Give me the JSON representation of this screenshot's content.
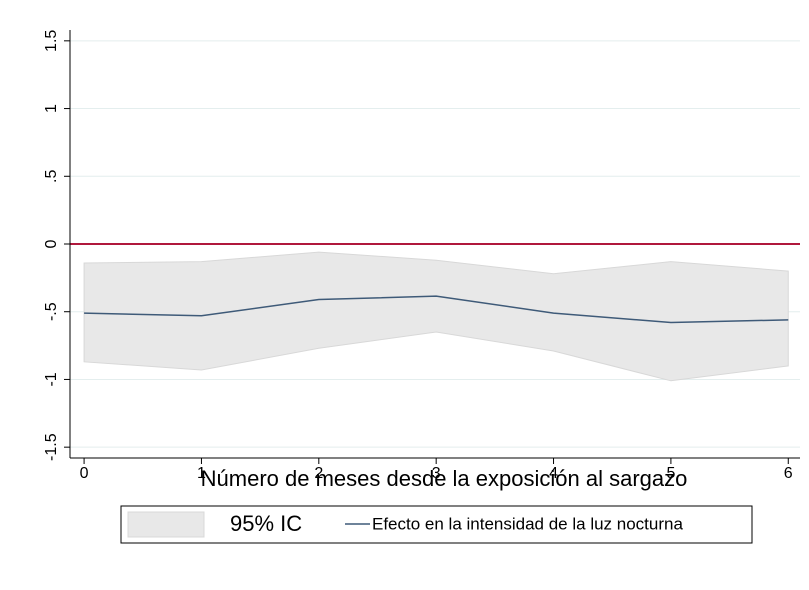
{
  "chart_data": {
    "type": "line",
    "xlabel": "Número de meses desde la exposición al sargazo",
    "x": [
      0,
      1,
      2,
      3,
      4,
      5,
      6
    ],
    "xlim": [
      -0.12,
      6.1
    ],
    "xticks": [
      0,
      1,
      2,
      3,
      4,
      5,
      6
    ],
    "ylim": [
      -1.58,
      1.58
    ],
    "yticks": [
      {
        "value": -1.5,
        "label": "-1.5"
      },
      -1,
      {
        "value": -0.5,
        "label": "-.5"
      },
      0,
      {
        "value": 0.5,
        "label": ".5"
      },
      1,
      1.5
    ],
    "grid": true,
    "grid_color": "#e4eeee",
    "reference_line": {
      "value": 0,
      "color": "#b0183c"
    },
    "band": {
      "name": "95% IC",
      "color": "#e8e8e8",
      "edge_color": "#d8d8d8",
      "upper": [
        -0.14,
        -0.13,
        -0.06,
        -0.12,
        -0.22,
        -0.13,
        -0.2
      ],
      "lower": [
        -0.87,
        -0.93,
        -0.77,
        -0.65,
        -0.79,
        -1.01,
        -0.9
      ]
    },
    "series": [
      {
        "name": "Efecto en la intensidad de la luz nocturna",
        "color": "#3e5a78",
        "values": [
          -0.51,
          -0.53,
          -0.41,
          -0.385,
          -0.51,
          -0.58,
          -0.56
        ]
      }
    ]
  }
}
